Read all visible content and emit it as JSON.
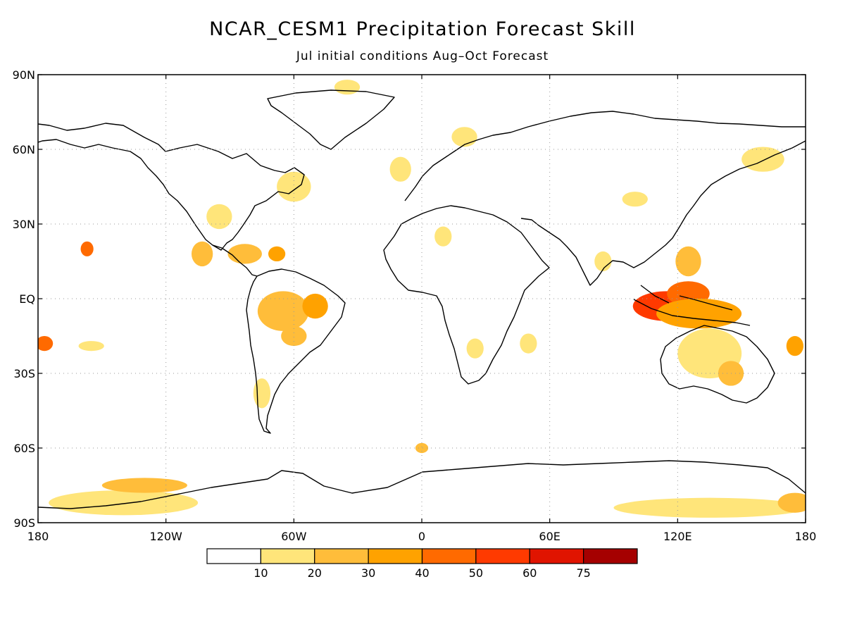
{
  "title": "NCAR_CESM1 Precipitation Forecast Skill",
  "subtitle": "Jul initial conditions  Aug–Oct Forecast",
  "map": {
    "lon_range": [
      -180,
      180
    ],
    "lat_range": [
      -90,
      90
    ],
    "grid": true,
    "lat_ticks": [
      {
        "value": 90,
        "label": "90N"
      },
      {
        "value": 60,
        "label": "60N"
      },
      {
        "value": 30,
        "label": "30N"
      },
      {
        "value": 0,
        "label": "EQ"
      },
      {
        "value": -30,
        "label": "30S"
      },
      {
        "value": -60,
        "label": "60S"
      },
      {
        "value": -90,
        "label": "90S"
      }
    ],
    "lon_ticks": [
      {
        "value": -180,
        "label": "180"
      },
      {
        "value": -120,
        "label": "120W"
      },
      {
        "value": -60,
        "label": "60W"
      },
      {
        "value": 0,
        "label": "0"
      },
      {
        "value": 60,
        "label": "60E"
      },
      {
        "value": 120,
        "label": "120E"
      },
      {
        "value": 180,
        "label": "180"
      }
    ]
  },
  "colorbar": {
    "colors": [
      "#ffffff",
      "#ffe57a",
      "#ffbd3a",
      "#ffa200",
      "#ff6a00",
      "#ff3a00",
      "#e01400",
      "#a50000"
    ],
    "labels": [
      "10",
      "20",
      "30",
      "40",
      "50",
      "60",
      "75"
    ]
  },
  "skill_regions": [
    {
      "lon": 115,
      "lat": -3,
      "rlon": 16,
      "rlat": 6,
      "level": 5
    },
    {
      "lon": 125,
      "lat": 2,
      "rlon": 10,
      "rlat": 5,
      "level": 4
    },
    {
      "lon": 130,
      "lat": -6,
      "rlon": 20,
      "rlat": 6,
      "level": 3
    },
    {
      "lon": 135,
      "lat": -22,
      "rlon": 15,
      "rlat": 10,
      "level": 1
    },
    {
      "lon": 145,
      "lat": -30,
      "rlon": 6,
      "rlat": 5,
      "level": 2
    },
    {
      "lon": 125,
      "lat": 15,
      "rlon": 6,
      "rlat": 6,
      "level": 2
    },
    {
      "lon": 160,
      "lat": 56,
      "rlon": 10,
      "rlat": 5,
      "level": 1
    },
    {
      "lon": -65,
      "lat": -5,
      "rlon": 12,
      "rlat": 8,
      "level": 2
    },
    {
      "lon": -50,
      "lat": -3,
      "rlon": 6,
      "rlat": 5,
      "level": 3
    },
    {
      "lon": -60,
      "lat": -15,
      "rlon": 6,
      "rlat": 4,
      "level": 2
    },
    {
      "lon": -83,
      "lat": 18,
      "rlon": 8,
      "rlat": 4,
      "level": 2
    },
    {
      "lon": -68,
      "lat": 18,
      "rlon": 4,
      "rlat": 3,
      "level": 3
    },
    {
      "lon": -103,
      "lat": 18,
      "rlon": 5,
      "rlat": 5,
      "level": 2
    },
    {
      "lon": -157,
      "lat": 20,
      "rlon": 3,
      "rlat": 3,
      "level": 4
    },
    {
      "lon": -177,
      "lat": -18,
      "rlon": 4,
      "rlat": 3,
      "level": 4
    },
    {
      "lon": -155,
      "lat": -19,
      "rlon": 6,
      "rlat": 2,
      "level": 1
    },
    {
      "lon": -140,
      "lat": -82,
      "rlon": 35,
      "rlat": 5,
      "level": 1
    },
    {
      "lon": -130,
      "lat": -75,
      "rlon": 20,
      "rlat": 3,
      "level": 2
    },
    {
      "lon": 135,
      "lat": -84,
      "rlon": 45,
      "rlat": 4,
      "level": 1
    },
    {
      "lon": 175,
      "lat": -82,
      "rlon": 8,
      "rlat": 4,
      "level": 2
    },
    {
      "lon": -60,
      "lat": 45,
      "rlon": 8,
      "rlat": 6,
      "level": 1
    },
    {
      "lon": -10,
      "lat": 52,
      "rlon": 5,
      "rlat": 5,
      "level": 1
    },
    {
      "lon": -35,
      "lat": 85,
      "rlon": 6,
      "rlat": 3,
      "level": 1
    },
    {
      "lon": -95,
      "lat": 33,
      "rlon": 6,
      "rlat": 5,
      "level": 1
    },
    {
      "lon": 10,
      "lat": 25,
      "rlon": 4,
      "rlat": 4,
      "level": 1
    },
    {
      "lon": 25,
      "lat": -20,
      "rlon": 4,
      "rlat": 4,
      "level": 1
    },
    {
      "lon": 50,
      "lat": -18,
      "rlon": 4,
      "rlat": 4,
      "level": 1
    },
    {
      "lon": 85,
      "lat": 15,
      "rlon": 4,
      "rlat": 4,
      "level": 1
    },
    {
      "lon": 175,
      "lat": -19,
      "rlon": 4,
      "rlat": 4,
      "level": 3
    },
    {
      "lon": 0,
      "lat": -60,
      "rlon": 3,
      "rlat": 2,
      "level": 2
    },
    {
      "lon": -75,
      "lat": -38,
      "rlon": 4,
      "rlat": 6,
      "level": 1
    },
    {
      "lon": 20,
      "lat": 65,
      "rlon": 6,
      "rlat": 4,
      "level": 1
    },
    {
      "lon": 100,
      "lat": 40,
      "rlon": 6,
      "rlat": 3,
      "level": 1
    }
  ]
}
